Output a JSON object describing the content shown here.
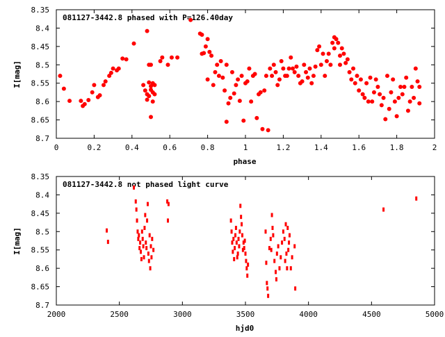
{
  "colors": {
    "points": "#ff0000",
    "frame": "#000000",
    "background": "#ffffff"
  },
  "chart_data": [
    {
      "type": "scatter",
      "title": "081127-3442.8 phased with P=126.40day",
      "xlabel": "phase",
      "ylabel": "I[mag]",
      "xlim": [
        0,
        2
      ],
      "ylim": [
        8.7,
        8.35
      ],
      "y_reversed": true,
      "xticks": [
        "0",
        "0.2",
        "0.4",
        "0.6",
        "0.8",
        "1",
        "1.2",
        "1.4",
        "1.6",
        "1.8",
        "2"
      ],
      "yticks": [
        "8.35",
        "8.4",
        "8.45",
        "8.5",
        "8.55",
        "8.6",
        "8.65",
        "8.7"
      ],
      "grid": false,
      "legend": "none",
      "points": [
        [
          0.02,
          8.53
        ],
        [
          0.04,
          8.565
        ],
        [
          0.07,
          8.598
        ],
        [
          0.13,
          8.598
        ],
        [
          0.14,
          8.612
        ],
        [
          0.15,
          8.607
        ],
        [
          0.17,
          8.596
        ],
        [
          0.19,
          8.575
        ],
        [
          0.2,
          8.555
        ],
        [
          0.22,
          8.588
        ],
        [
          0.23,
          8.583
        ],
        [
          0.25,
          8.555
        ],
        [
          0.26,
          8.545
        ],
        [
          0.28,
          8.53
        ],
        [
          0.29,
          8.522
        ],
        [
          0.3,
          8.51
        ],
        [
          0.32,
          8.515
        ],
        [
          0.33,
          8.51
        ],
        [
          0.35,
          8.483
        ],
        [
          0.37,
          8.485
        ],
        [
          0.41,
          8.442
        ],
        [
          0.46,
          8.555
        ],
        [
          0.47,
          8.57
        ],
        [
          0.48,
          8.408
        ],
        [
          0.48,
          8.58
        ],
        [
          0.48,
          8.595
        ],
        [
          0.49,
          8.5
        ],
        [
          0.49,
          8.548
        ],
        [
          0.49,
          8.585
        ],
        [
          0.5,
          8.5
        ],
        [
          0.5,
          8.558
        ],
        [
          0.5,
          8.568
        ],
        [
          0.5,
          8.642
        ],
        [
          0.51,
          8.55
        ],
        [
          0.51,
          8.575
        ],
        [
          0.51,
          8.6
        ],
        [
          0.52,
          8.555
        ],
        [
          0.52,
          8.58
        ],
        [
          0.55,
          8.49
        ],
        [
          0.56,
          8.48
        ],
        [
          0.59,
          8.5
        ],
        [
          0.61,
          8.48
        ],
        [
          0.64,
          8.48
        ],
        [
          0.71,
          8.378
        ],
        [
          0.76,
          8.415
        ],
        [
          0.77,
          8.418
        ],
        [
          0.77,
          8.47
        ],
        [
          0.78,
          8.468
        ],
        [
          0.79,
          8.45
        ],
        [
          0.8,
          8.43
        ],
        [
          0.8,
          8.54
        ],
        [
          0.81,
          8.465
        ],
        [
          0.82,
          8.475
        ],
        [
          0.83,
          8.555
        ],
        [
          0.84,
          8.52
        ],
        [
          0.85,
          8.5
        ],
        [
          0.86,
          8.53
        ],
        [
          0.87,
          8.49
        ],
        [
          0.88,
          8.535
        ],
        [
          0.89,
          8.57
        ],
        [
          0.9,
          8.5
        ],
        [
          0.9,
          8.655
        ],
        [
          0.91,
          8.605
        ],
        [
          0.92,
          8.59
        ],
        [
          0.93,
          8.52
        ],
        [
          0.94,
          8.578
        ],
        [
          0.95,
          8.555
        ],
        [
          0.96,
          8.54
        ],
        [
          0.97,
          8.598
        ],
        [
          0.98,
          8.53
        ],
        [
          0.99,
          8.652
        ],
        [
          1.0,
          8.55
        ],
        [
          1.01,
          8.545
        ],
        [
          1.02,
          8.51
        ],
        [
          1.03,
          8.6
        ],
        [
          1.04,
          8.53
        ],
        [
          1.05,
          8.525
        ],
        [
          1.06,
          8.645
        ],
        [
          1.07,
          8.58
        ],
        [
          1.08,
          8.575
        ],
        [
          1.09,
          8.675
        ],
        [
          1.1,
          8.57
        ],
        [
          1.11,
          8.53
        ],
        [
          1.12,
          8.678
        ],
        [
          1.13,
          8.51
        ],
        [
          1.14,
          8.53
        ],
        [
          1.15,
          8.5
        ],
        [
          1.16,
          8.52
        ],
        [
          1.17,
          8.555
        ],
        [
          1.18,
          8.54
        ],
        [
          1.19,
          8.49
        ],
        [
          1.2,
          8.51
        ],
        [
          1.21,
          8.53
        ],
        [
          1.22,
          8.53
        ],
        [
          1.23,
          8.51
        ],
        [
          1.24,
          8.48
        ],
        [
          1.25,
          8.51
        ],
        [
          1.26,
          8.52
        ],
        [
          1.27,
          8.505
        ],
        [
          1.28,
          8.53
        ],
        [
          1.29,
          8.55
        ],
        [
          1.3,
          8.545
        ],
        [
          1.31,
          8.5
        ],
        [
          1.32,
          8.52
        ],
        [
          1.33,
          8.535
        ],
        [
          1.34,
          8.51
        ],
        [
          1.35,
          8.55
        ],
        [
          1.36,
          8.53
        ],
        [
          1.37,
          8.505
        ],
        [
          1.38,
          8.46
        ],
        [
          1.39,
          8.45
        ],
        [
          1.4,
          8.5
        ],
        [
          1.41,
          8.47
        ],
        [
          1.42,
          8.53
        ],
        [
          1.43,
          8.49
        ],
        [
          1.44,
          8.47
        ],
        [
          1.45,
          8.5
        ],
        [
          1.46,
          8.44
        ],
        [
          1.47,
          8.425
        ],
        [
          1.47,
          8.455
        ],
        [
          1.48,
          8.43
        ],
        [
          1.49,
          8.44
        ],
        [
          1.5,
          8.475
        ],
        [
          1.5,
          8.5
        ],
        [
          1.51,
          8.455
        ],
        [
          1.52,
          8.47
        ],
        [
          1.53,
          8.495
        ],
        [
          1.54,
          8.485
        ],
        [
          1.55,
          8.52
        ],
        [
          1.56,
          8.54
        ],
        [
          1.57,
          8.51
        ],
        [
          1.58,
          8.55
        ],
        [
          1.59,
          8.53
        ],
        [
          1.6,
          8.57
        ],
        [
          1.61,
          8.54
        ],
        [
          1.62,
          8.58
        ],
        [
          1.63,
          8.59
        ],
        [
          1.64,
          8.55
        ],
        [
          1.65,
          8.6
        ],
        [
          1.66,
          8.535
        ],
        [
          1.67,
          8.6
        ],
        [
          1.68,
          8.575
        ],
        [
          1.69,
          8.54
        ],
        [
          1.7,
          8.56
        ],
        [
          1.71,
          8.58
        ],
        [
          1.72,
          8.61
        ],
        [
          1.73,
          8.59
        ],
        [
          1.74,
          8.648
        ],
        [
          1.75,
          8.53
        ],
        [
          1.76,
          8.62
        ],
        [
          1.77,
          8.575
        ],
        [
          1.78,
          8.54
        ],
        [
          1.79,
          8.6
        ],
        [
          1.8,
          8.64
        ],
        [
          1.81,
          8.59
        ],
        [
          1.82,
          8.56
        ],
        [
          1.83,
          8.58
        ],
        [
          1.84,
          8.56
        ],
        [
          1.85,
          8.535
        ],
        [
          1.86,
          8.625
        ],
        [
          1.87,
          8.6
        ],
        [
          1.88,
          8.56
        ],
        [
          1.89,
          8.59
        ],
        [
          1.9,
          8.51
        ],
        [
          1.91,
          8.545
        ],
        [
          1.92,
          8.605
        ],
        [
          1.92,
          8.56
        ]
      ]
    },
    {
      "type": "scatter",
      "title": "081127-3442.8 not phased light curve",
      "xlabel": "hjd0",
      "ylabel": "I[mag]",
      "xlim": [
        2000,
        5000
      ],
      "ylim": [
        8.7,
        8.35
      ],
      "y_reversed": true,
      "xticks": [
        "2000",
        "2500",
        "3000",
        "3500",
        "4000",
        "4500",
        "5000"
      ],
      "yticks": [
        "8.35",
        "8.4",
        "8.45",
        "8.5",
        "8.55",
        "8.6",
        "8.65",
        "8.7"
      ],
      "grid": false,
      "legend": "none",
      "points": [
        [
          2400,
          8.497
        ],
        [
          2410,
          8.528
        ],
        [
          2615,
          8.38
        ],
        [
          2630,
          8.418
        ],
        [
          2635,
          8.44
        ],
        [
          2640,
          8.47
        ],
        [
          2645,
          8.5
        ],
        [
          2650,
          8.52
        ],
        [
          2655,
          8.51
        ],
        [
          2660,
          8.545
        ],
        [
          2665,
          8.53
        ],
        [
          2670,
          8.555
        ],
        [
          2675,
          8.575
        ],
        [
          2680,
          8.5
        ],
        [
          2685,
          8.52
        ],
        [
          2690,
          8.54
        ],
        [
          2695,
          8.57
        ],
        [
          2700,
          8.49
        ],
        [
          2705,
          8.455
        ],
        [
          2710,
          8.53
        ],
        [
          2715,
          8.545
        ],
        [
          2720,
          8.47
        ],
        [
          2725,
          8.425
        ],
        [
          2730,
          8.56
        ],
        [
          2735,
          8.58
        ],
        [
          2740,
          8.51
        ],
        [
          2745,
          8.6
        ],
        [
          2750,
          8.54
        ],
        [
          2755,
          8.57
        ],
        [
          2760,
          8.52
        ],
        [
          2770,
          8.55
        ],
        [
          2880,
          8.418
        ],
        [
          2890,
          8.425
        ],
        [
          2885,
          8.47
        ],
        [
          3385,
          8.47
        ],
        [
          3390,
          8.5
        ],
        [
          3395,
          8.53
        ],
        [
          3400,
          8.555
        ],
        [
          3405,
          8.52
        ],
        [
          3410,
          8.575
        ],
        [
          3415,
          8.545
        ],
        [
          3420,
          8.51
        ],
        [
          3425,
          8.49
        ],
        [
          3430,
          8.53
        ],
        [
          3435,
          8.57
        ],
        [
          3440,
          8.56
        ],
        [
          3445,
          8.52
        ],
        [
          3450,
          8.54
        ],
        [
          3455,
          8.5
        ],
        [
          3460,
          8.43
        ],
        [
          3465,
          8.46
        ],
        [
          3470,
          8.48
        ],
        [
          3475,
          8.51
        ],
        [
          3480,
          8.55
        ],
        [
          3485,
          8.53
        ],
        [
          3490,
          8.545
        ],
        [
          3495,
          8.525
        ],
        [
          3500,
          8.56
        ],
        [
          3505,
          8.58
        ],
        [
          3510,
          8.6
        ],
        [
          3515,
          8.62
        ],
        [
          3520,
          8.59
        ],
        [
          3660,
          8.5
        ],
        [
          3665,
          8.585
        ],
        [
          3670,
          8.64
        ],
        [
          3675,
          8.655
        ],
        [
          3680,
          8.675
        ],
        [
          3690,
          8.545
        ],
        [
          3700,
          8.52
        ],
        [
          3705,
          8.55
        ],
        [
          3710,
          8.455
        ],
        [
          3715,
          8.49
        ],
        [
          3720,
          8.51
        ],
        [
          3730,
          8.58
        ],
        [
          3740,
          8.61
        ],
        [
          3745,
          8.63
        ],
        [
          3750,
          8.56
        ],
        [
          3760,
          8.54
        ],
        [
          3770,
          8.6
        ],
        [
          3780,
          8.57
        ],
        [
          3790,
          8.53
        ],
        [
          3800,
          8.5
        ],
        [
          3810,
          8.52
        ],
        [
          3815,
          8.58
        ],
        [
          3820,
          8.48
        ],
        [
          3825,
          8.56
        ],
        [
          3830,
          8.6
        ],
        [
          3835,
          8.49
        ],
        [
          3840,
          8.55
        ],
        [
          3845,
          8.53
        ],
        [
          3850,
          8.51
        ],
        [
          3860,
          8.6
        ],
        [
          3870,
          8.57
        ],
        [
          3890,
          8.54
        ],
        [
          3895,
          8.655
        ],
        [
          4595,
          8.44
        ],
        [
          4855,
          8.41
        ]
      ]
    }
  ]
}
